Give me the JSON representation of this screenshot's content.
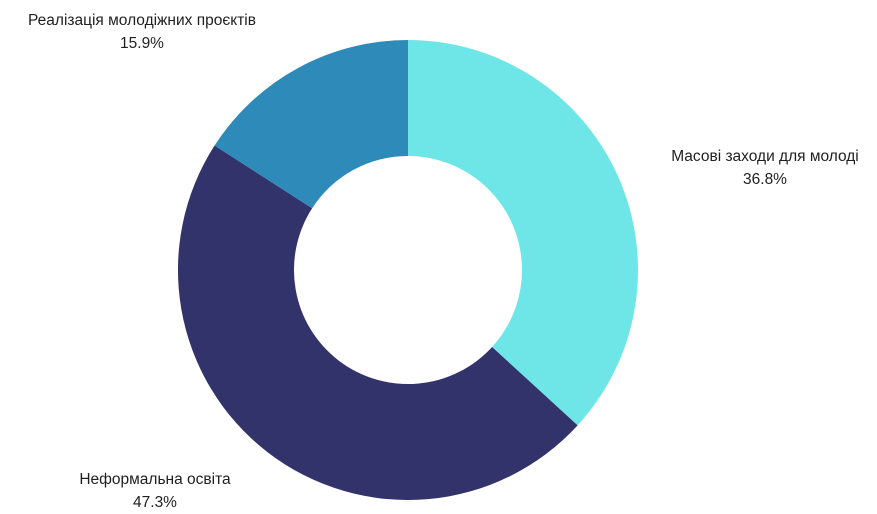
{
  "chart_data": {
    "type": "pie",
    "donut": true,
    "title": "",
    "categories": [
      "Масові заходи для молоді",
      "Неформальна освіта",
      "Реалізація молодіжних проєктів"
    ],
    "values": [
      36.8,
      47.3,
      15.9
    ],
    "value_labels": [
      "36.8%",
      "47.3%",
      "15.9%"
    ],
    "colors": [
      "#6ee6e8",
      "#33336b",
      "#2e8ab8"
    ],
    "start": "12 o'clock",
    "direction": "clockwise",
    "legend": "none"
  }
}
